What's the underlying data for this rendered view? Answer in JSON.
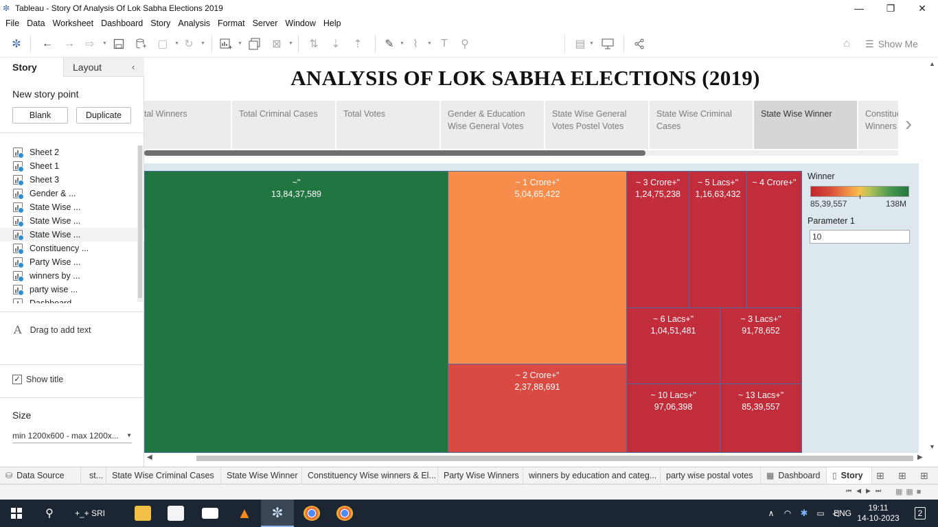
{
  "window": {
    "title": "Tableau - Story Of Analysis Of Lok Sabha Elections 2019",
    "controls": [
      "—",
      "❐",
      "✕"
    ]
  },
  "menu": [
    "File",
    "Data",
    "Worksheet",
    "Dashboard",
    "Story",
    "Analysis",
    "Format",
    "Server",
    "Window",
    "Help"
  ],
  "toolbar": {
    "show_me": "Show Me"
  },
  "left_panel": {
    "tabs": {
      "story": "Story",
      "layout": "Layout"
    },
    "new_story_point": "New story point",
    "blank_button": "Blank",
    "duplicate_button": "Duplicate",
    "sheets": [
      "Sheet 2",
      "Sheet 1",
      "Sheet 3",
      "Gender & ...",
      "State Wise ...",
      "State Wise ...",
      "State Wise ...",
      "Constituency ...",
      "Party Wise ...",
      "winners by ...",
      "party wise ...",
      "Dashboard"
    ],
    "selected_sheet_index": 6,
    "drag_text": "Drag to add text",
    "show_title": "Show title",
    "show_title_checked": true,
    "size_label": "Size",
    "size_value": "min 1200x600 - max 1200x..."
  },
  "story": {
    "title": "ANALYSIS OF LOK SABHA ELECTIONS (2019)",
    "nav_points": [
      "tal Winners",
      "Total Criminal Cases",
      "Total Votes",
      "Gender & Education Wise General Votes",
      "State Wise General Votes Postel Votes",
      "State Wise Criminal Cases",
      "State Wise Winner",
      "Constituency Winners"
    ],
    "active_nav_index": 6,
    "next_arrow": "›"
  },
  "treemap": {
    "tiles": [
      {
        "label": "~\"",
        "value": "13,84,37,589",
        "color": "#217540"
      },
      {
        "label": "~ 1 Crore+\"",
        "value": "5,04,65,422",
        "color": "#f78c4b"
      },
      {
        "label": "~ 2 Crore+\"",
        "value": "2,37,88,691",
        "color": "#d94b42"
      },
      {
        "label": "~ 3 Crore+\"",
        "value": "1,24,75,238",
        "color": "#c22d3b"
      },
      {
        "label": "~ 5 Lacs+\"",
        "value": "1,16,63,432",
        "color": "#c22d3b"
      },
      {
        "label": "~ 4 Crore+\"",
        "value": "",
        "color": "#c22d3b"
      },
      {
        "label": "~ 6 Lacs+\"",
        "value": "1,04,51,481",
        "color": "#c22d3b"
      },
      {
        "label": "~ 3 Lacs+\"",
        "value": "91,78,652",
        "color": "#c22d3b"
      },
      {
        "label": "~ 10 Lacs+\"",
        "value": "97,06,398",
        "color": "#c22d3b"
      },
      {
        "label": "~ 13 Lacs+\"",
        "value": "85,39,557",
        "color": "#c22d3b"
      }
    ],
    "legend": {
      "title": "Winner",
      "min": "85,39,557",
      "max": "138M"
    },
    "parameter": {
      "title": "Parameter 1",
      "value": "10"
    }
  },
  "bottom_tabs": [
    {
      "label": "Data Source",
      "icon": "database-icon"
    },
    {
      "label": "st...",
      "icon": ""
    },
    {
      "label": "State Wise Criminal Cases",
      "icon": ""
    },
    {
      "label": "State Wise Winner",
      "icon": ""
    },
    {
      "label": "Constituency Wise winners & El...",
      "icon": ""
    },
    {
      "label": "Party Wise Winners",
      "icon": ""
    },
    {
      "label": "winners by education and categ...",
      "icon": ""
    },
    {
      "label": "party wise postal votes",
      "icon": ""
    },
    {
      "label": "Dashboard",
      "icon": "dashboard-icon"
    },
    {
      "label": "Story",
      "icon": "story-icon"
    }
  ],
  "taskbar": {
    "search_label": "+_+ SRI",
    "time": "19:11",
    "date": "14-10-2023",
    "lang": "ENG",
    "notifications": "2"
  }
}
